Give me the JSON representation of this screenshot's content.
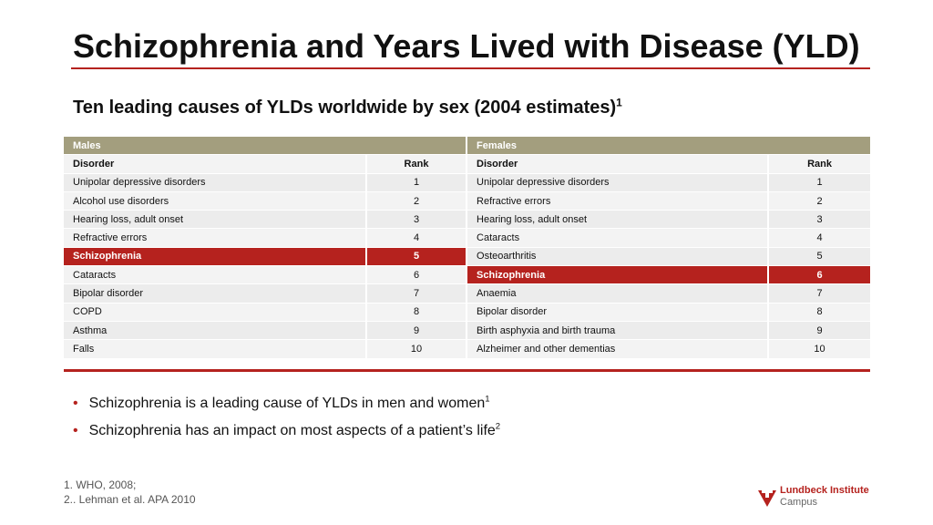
{
  "header": {
    "title": "Schizophrenia and Years Lived with Disease (YLD)",
    "subtitle": "Ten leading causes of YLDs worldwide by sex (2004 estimates)",
    "subtitle_ref": "1"
  },
  "table": {
    "groups": [
      "Males",
      "Females"
    ],
    "columns": [
      "Disorder",
      "Rank",
      "Disorder",
      "Rank"
    ],
    "rows": [
      [
        "Unipolar depressive disorders",
        1,
        "Unipolar depressive disorders",
        1
      ],
      [
        "Alcohol use disorders",
        2,
        "Refractive errors",
        2
      ],
      [
        "Hearing loss, adult onset",
        3,
        "Hearing loss, adult onset",
        3
      ],
      [
        "Refractive errors",
        4,
        "Cataracts",
        4
      ],
      [
        "Schizophrenia",
        5,
        "Osteoarthritis",
        5
      ],
      [
        "Cataracts",
        6,
        "Schizophrenia",
        6
      ],
      [
        "Bipolar disorder",
        7,
        "Anaemia",
        7
      ],
      [
        "COPD",
        8,
        "Bipolar disorder",
        8
      ],
      [
        "Asthma",
        9,
        "Birth asphyxia and birth trauma",
        9
      ],
      [
        "Falls",
        10,
        "Alzheimer and other dementias",
        10
      ]
    ]
  },
  "bullets": [
    {
      "text": "Schizophrenia is a leading cause of YLDs in men and women",
      "ref": "1"
    },
    {
      "text": "Schizophrenia has an impact on most aspects of a patient’s life",
      "ref": "2"
    }
  ],
  "footnotes": [
    "1.  WHO, 2008;",
    "2.. Lehman et al. APA 2010"
  ],
  "logo": {
    "line1": "Lundbeck Institute",
    "line2": "Campus"
  }
}
